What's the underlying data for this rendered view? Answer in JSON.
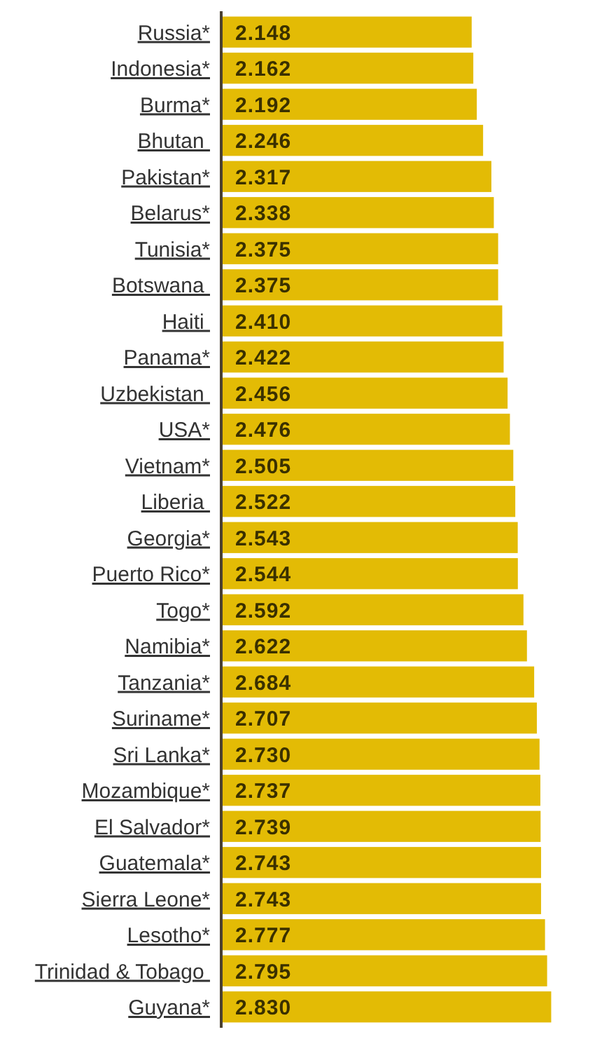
{
  "chart_data": {
    "type": "bar",
    "orientation": "horizontal",
    "relative": false,
    "value_labels": [
      "2.148",
      "2.162",
      "2.192",
      "2.246",
      "2.317",
      "2.338",
      "2.375",
      "2.375",
      "2.410",
      "2.422",
      "2.456",
      "2.476",
      "2.505",
      "2.522",
      "2.543",
      "2.544",
      "2.592",
      "2.622",
      "2.684",
      "2.707",
      "2.730",
      "2.737",
      "2.739",
      "2.743",
      "2.743",
      "2.777",
      "2.795",
      "2.830"
    ],
    "color": "#e3bb05",
    "categories": [
      "Russia*",
      "Indonesia*",
      "Burma*",
      "Bhutan ",
      "Pakistan*",
      "Belarus*",
      "Tunisia*",
      "Botswana ",
      "Haiti ",
      "Panama*",
      "Uzbekistan ",
      "USA*",
      "Vietnam*",
      "Liberia ",
      "Georgia*",
      "Puerto Rico*",
      "Togo*",
      "Namibia*",
      "Tanzania*",
      "Suriname*",
      "Sri Lanka*",
      "Mozambique*",
      "El Salvador*",
      "Guatemala*",
      "Sierra Leone*",
      "Lesotho*",
      "Trinidad & Tobago ",
      "Guyana*"
    ],
    "values": [
      2.148,
      2.162,
      2.192,
      2.246,
      2.317,
      2.338,
      2.375,
      2.375,
      2.41,
      2.422,
      2.456,
      2.476,
      2.505,
      2.522,
      2.543,
      2.544,
      2.592,
      2.622,
      2.684,
      2.707,
      2.73,
      2.737,
      2.739,
      2.743,
      2.743,
      2.777,
      2.795,
      2.83
    ]
  }
}
